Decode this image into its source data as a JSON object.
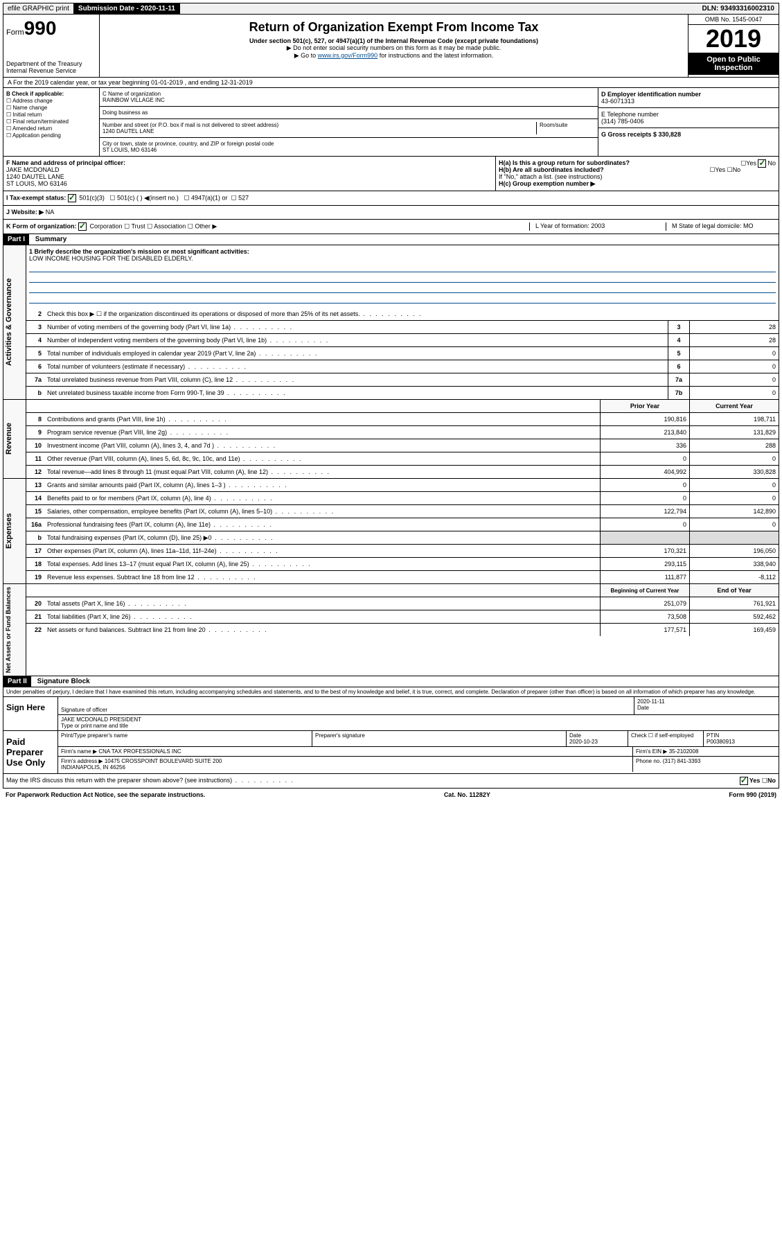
{
  "topbar": {
    "efile": "efile GRAPHIC print",
    "sub_label": "Submission Date - 2020-11-11",
    "dln": "DLN: 93493316002310"
  },
  "header": {
    "form_label": "Form",
    "form_num": "990",
    "dept": "Department of the Treasury\nInternal Revenue Service",
    "title": "Return of Organization Exempt From Income Tax",
    "subtitle": "Under section 501(c), 527, or 4947(a)(1) of the Internal Revenue Code (except private foundations)",
    "note1": "▶ Do not enter social security numbers on this form as it may be made public.",
    "note2_pre": "▶ Go to ",
    "note2_link": "www.irs.gov/Form990",
    "note2_post": " for instructions and the latest information.",
    "omb": "OMB No. 1545-0047",
    "year": "2019",
    "open": "Open to Public Inspection"
  },
  "row_a": "A For the 2019 calendar year, or tax year beginning 01-01-2019    , and ending 12-31-2019",
  "section_b": {
    "title": "B Check if applicable:",
    "opts": [
      "Address change",
      "Name change",
      "Initial return",
      "Final return/terminated",
      "Amended return",
      "Application pending"
    ]
  },
  "section_c": {
    "name_label": "C Name of organization",
    "name": "RAINBOW VILLAGE INC",
    "dba_label": "Doing business as",
    "addr_label": "Number and street (or P.O. box if mail is not delivered to street address)",
    "room_label": "Room/suite",
    "addr": "1240 DAUTEL LANE",
    "city_label": "City or town, state or province, country, and ZIP or foreign postal code",
    "city": "ST LOUIS, MO  63146"
  },
  "section_d": {
    "label": "D Employer identification number",
    "value": "43-6071313"
  },
  "section_e": {
    "label": "E Telephone number",
    "value": "(314) 785-0406"
  },
  "section_g": {
    "label": "G Gross receipts $ 330,828"
  },
  "section_f": {
    "label": "F  Name and address of principal officer:",
    "name": "JAKE MCDONALD",
    "addr1": "1240 DAUTEL LANE",
    "addr2": "ST LOUIS, MO  63146"
  },
  "section_h": {
    "ha": "H(a)  Is this a group return for subordinates?",
    "hb": "H(b)  Are all subordinates included?",
    "hb_note": "If \"No,\" attach a list. (see instructions)",
    "hc": "H(c)  Group exemption number ▶",
    "yes": "Yes",
    "no": "No"
  },
  "row_i": {
    "label": "I   Tax-exempt status:",
    "opt1": "501(c)(3)",
    "opt2": "501(c) (  ) ◀(insert no.)",
    "opt3": "4947(a)(1) or",
    "opt4": "527"
  },
  "row_j": {
    "label": "J   Website: ▶",
    "value": "NA"
  },
  "row_k": {
    "label": "K Form of organization:",
    "corp": "Corporation",
    "trust": "Trust",
    "assoc": "Association",
    "other": "Other ▶",
    "l": "L Year of formation: 2003",
    "m": "M State of legal domicile: MO"
  },
  "part1": {
    "header": "Part I",
    "title": "Summary"
  },
  "mission": {
    "label": "1  Briefly describe the organization's mission or most significant activities:",
    "text": "LOW INCOME HOUSING FOR THE DISABLED ELDERLY."
  },
  "governance": {
    "side": "Activities & Governance",
    "lines": [
      {
        "n": "2",
        "t": "Check this box ▶ ☐  if the organization discontinued its operations or disposed of more than 25% of its net assets."
      },
      {
        "n": "3",
        "t": "Number of voting members of the governing body (Part VI, line 1a)",
        "sn": "3",
        "v": "28"
      },
      {
        "n": "4",
        "t": "Number of independent voting members of the governing body (Part VI, line 1b)",
        "sn": "4",
        "v": "28"
      },
      {
        "n": "5",
        "t": "Total number of individuals employed in calendar year 2019 (Part V, line 2a)",
        "sn": "5",
        "v": "0"
      },
      {
        "n": "6",
        "t": "Total number of volunteers (estimate if necessary)",
        "sn": "6",
        "v": "0"
      },
      {
        "n": "7a",
        "t": "Total unrelated business revenue from Part VIII, column (C), line 12",
        "sn": "7a",
        "v": "0"
      },
      {
        "n": "b",
        "t": "Net unrelated business taxable income from Form 990-T, line 39",
        "sn": "7b",
        "v": "0"
      }
    ]
  },
  "revenue": {
    "side": "Revenue",
    "header_prior": "Prior Year",
    "header_current": "Current Year",
    "lines": [
      {
        "n": "8",
        "t": "Contributions and grants (Part VIII, line 1h)",
        "p": "190,816",
        "c": "198,711"
      },
      {
        "n": "9",
        "t": "Program service revenue (Part VIII, line 2g)",
        "p": "213,840",
        "c": "131,829"
      },
      {
        "n": "10",
        "t": "Investment income (Part VIII, column (A), lines 3, 4, and 7d )",
        "p": "336",
        "c": "288"
      },
      {
        "n": "11",
        "t": "Other revenue (Part VIII, column (A), lines 5, 6d, 8c, 9c, 10c, and 11e)",
        "p": "0",
        "c": "0"
      },
      {
        "n": "12",
        "t": "Total revenue—add lines 8 through 11 (must equal Part VIII, column (A), line 12)",
        "p": "404,992",
        "c": "330,828"
      }
    ]
  },
  "expenses": {
    "side": "Expenses",
    "lines": [
      {
        "n": "13",
        "t": "Grants and similar amounts paid (Part IX, column (A), lines 1–3 )",
        "p": "0",
        "c": "0"
      },
      {
        "n": "14",
        "t": "Benefits paid to or for members (Part IX, column (A), line 4)",
        "p": "0",
        "c": "0"
      },
      {
        "n": "15",
        "t": "Salaries, other compensation, employee benefits (Part IX, column (A), lines 5–10)",
        "p": "122,794",
        "c": "142,890"
      },
      {
        "n": "16a",
        "t": "Professional fundraising fees (Part IX, column (A), line 11e)",
        "p": "0",
        "c": "0"
      },
      {
        "n": "b",
        "t": "Total fundraising expenses (Part IX, column (D), line 25) ▶0",
        "p": "",
        "c": "",
        "shaded": true
      },
      {
        "n": "17",
        "t": "Other expenses (Part IX, column (A), lines 11a–11d, 11f–24e)",
        "p": "170,321",
        "c": "196,050"
      },
      {
        "n": "18",
        "t": "Total expenses. Add lines 13–17 (must equal Part IX, column (A), line 25)",
        "p": "293,115",
        "c": "338,940"
      },
      {
        "n": "19",
        "t": "Revenue less expenses. Subtract line 18 from line 12",
        "p": "111,877",
        "c": "-8,112"
      }
    ]
  },
  "netassets": {
    "side": "Net Assets or Fund Balances",
    "header_begin": "Beginning of Current Year",
    "header_end": "End of Year",
    "lines": [
      {
        "n": "20",
        "t": "Total assets (Part X, line 16)",
        "p": "251,079",
        "c": "761,921"
      },
      {
        "n": "21",
        "t": "Total liabilities (Part X, line 26)",
        "p": "73,508",
        "c": "592,462"
      },
      {
        "n": "22",
        "t": "Net assets or fund balances. Subtract line 21 from line 20",
        "p": "177,571",
        "c": "169,459"
      }
    ]
  },
  "part2": {
    "header": "Part II",
    "title": "Signature Block"
  },
  "perjury": "Under penalties of perjury, I declare that I have examined this return, including accompanying schedules and statements, and to the best of my knowledge and belief, it is true, correct, and complete. Declaration of preparer (other than officer) is based on all information of which preparer has any knowledge.",
  "sign": {
    "label": "Sign Here",
    "sig_of_officer": "Signature of officer",
    "date": "2020-11-11",
    "date_label": "Date",
    "name": "JAKE MCDONALD  PRESIDENT",
    "name_label": "Type or print name and title"
  },
  "paid": {
    "label": "Paid Preparer Use Only",
    "print_label": "Print/Type preparer's name",
    "sig_label": "Preparer's signature",
    "date_label": "Date",
    "date": "2020-10-23",
    "check_label": "Check ☐ if self-employed",
    "ptin_label": "PTIN",
    "ptin": "P00380913",
    "firm_name_label": "Firm's name    ▶",
    "firm_name": "CNA TAX PROFESSIONALS INC",
    "firm_ein_label": "Firm's EIN ▶",
    "firm_ein": "35-2102008",
    "firm_addr_label": "Firm's address ▶",
    "firm_addr": "10475 CROSSPOINT BOULEVARD SUITE 200\nINDIANAPOLIS, IN  46256",
    "phone_label": "Phone no.",
    "phone": "(317) 841-3393"
  },
  "discuss": "May the IRS discuss this return with the preparer shown above? (see instructions)",
  "footer": {
    "left": "For Paperwork Reduction Act Notice, see the separate instructions.",
    "center": "Cat. No. 11282Y",
    "right": "Form 990 (2019)"
  }
}
